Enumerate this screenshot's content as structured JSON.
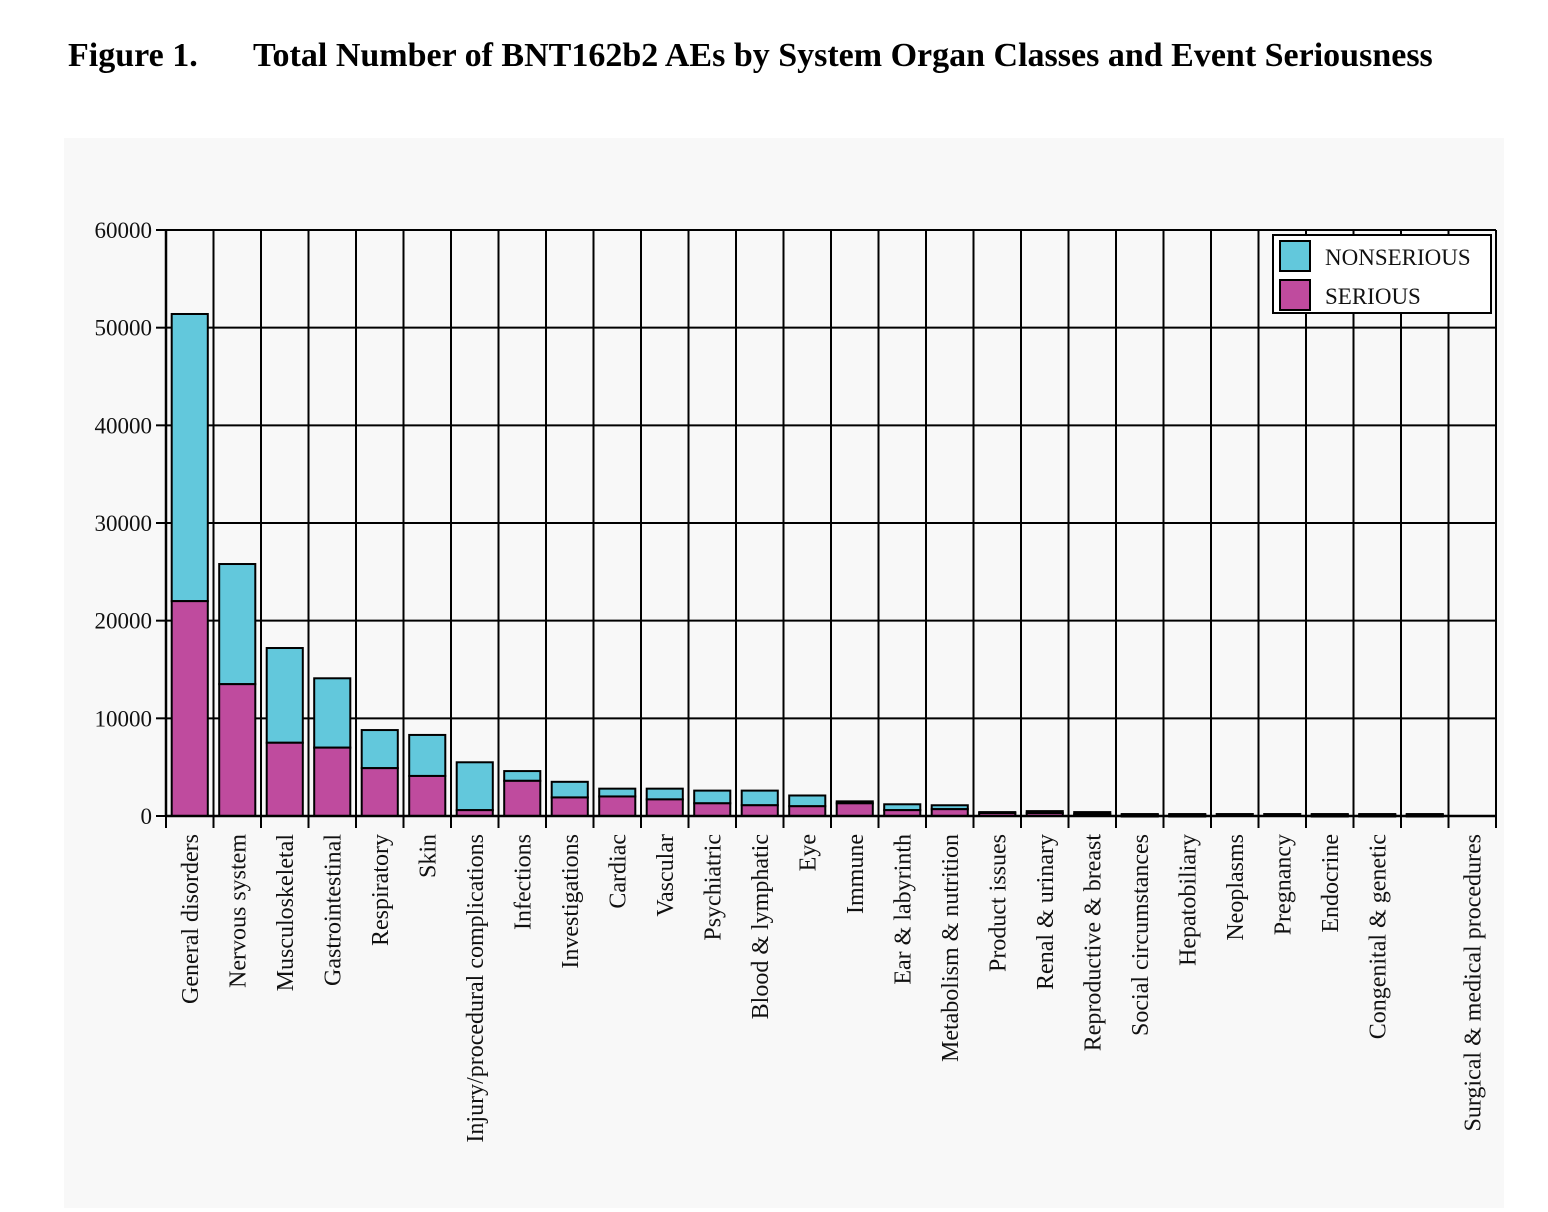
{
  "figure": {
    "label": "Figure 1.",
    "title": "Total Number of BNT162b2 AEs by System Organ Classes and Event Seriousness"
  },
  "colors": {
    "nonserious": "#62c8dc",
    "serious": "#bf4b9e",
    "background": "#f8f8f8",
    "grid": "#000000"
  },
  "chart_data": {
    "type": "bar",
    "stacked": true,
    "title": "Total Number of BNT162b2 AEs by System Organ Classes and Event Seriousness",
    "xlabel": "",
    "ylabel": "",
    "ylim": [
      0,
      60000
    ],
    "yticks": [
      0,
      10000,
      20000,
      30000,
      40000,
      50000,
      60000
    ],
    "ytick_labels": [
      "0",
      "10000",
      "20000",
      "30000",
      "40000",
      "50000",
      "60000"
    ],
    "grid": true,
    "legend_position": "top-right",
    "categories": [
      "General disorders",
      "Nervous system",
      "Musculoskeletal",
      "Gastrointestinal",
      "Respiratory",
      "Skin",
      "Injury/procedural complications",
      "Infections",
      "Investigations",
      "Cardiac",
      "Vascular",
      "Psychiatric",
      "Blood & lymphatic",
      "Eye",
      "Immune",
      "Ear & labyrinth",
      "Metabolism & nutrition",
      "Product issues",
      "Renal & urinary",
      "Reproductive & breast",
      "Social circumstances",
      "Hepatobiliary",
      "Neoplasms",
      "Pregnancy",
      "Endocrine",
      "Congenital & genetic",
      "",
      "Surgical & medical procedures"
    ],
    "series": [
      {
        "name": "SERIOUS",
        "values": [
          22000,
          13500,
          7500,
          7000,
          4900,
          4100,
          600,
          3600,
          1900,
          2000,
          1700,
          1300,
          1100,
          1000,
          1300,
          600,
          700,
          300,
          300,
          200,
          100,
          100,
          200,
          200,
          100,
          100,
          100,
          0
        ]
      },
      {
        "name": "NONSERIOUS",
        "values": [
          29400,
          12300,
          9700,
          7100,
          3900,
          4200,
          4900,
          1000,
          1600,
          800,
          1100,
          1300,
          1500,
          1100,
          200,
          600,
          400,
          100,
          200,
          200,
          100,
          100,
          0,
          0,
          100,
          100,
          100,
          0
        ]
      }
    ]
  }
}
